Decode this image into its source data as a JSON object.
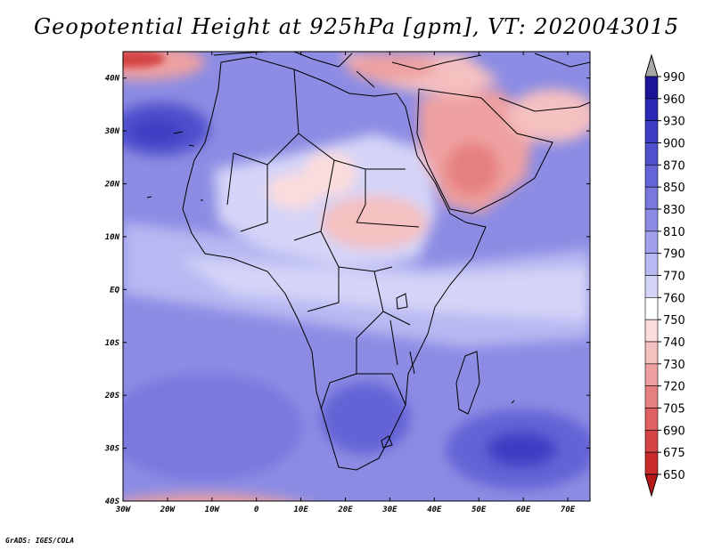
{
  "title": "Geopotential Height at 925hPa [gpm], VT: 2020043015",
  "credit": "GrADS: IGES/COLA",
  "map": {
    "lon_labels": [
      "30W",
      "20W",
      "10W",
      "0",
      "10E",
      "20E",
      "30E",
      "40E",
      "50E",
      "60E",
      "70E"
    ],
    "lat_labels": [
      "40N",
      "30N",
      "20N",
      "10N",
      "EQ",
      "10S",
      "20S",
      "30S",
      "40S"
    ]
  },
  "colorbar": {
    "levels": [
      "990",
      "960",
      "930",
      "900",
      "870",
      "850",
      "830",
      "810",
      "790",
      "770",
      "760",
      "750",
      "740",
      "730",
      "720",
      "705",
      "690",
      "675",
      "650"
    ],
    "colors": [
      "#1a1496",
      "#2a28b4",
      "#3c3cc4",
      "#5050cc",
      "#6464d6",
      "#7878de",
      "#8c8ce4",
      "#a0a0ec",
      "#b8b8f2",
      "#d4d4f8",
      "#ffffff",
      "#fbdcdc",
      "#f5c0c0",
      "#eea0a0",
      "#e68080",
      "#de6060",
      "#d44444",
      "#c82a2a",
      "#b81818"
    ]
  },
  "colors": {
    "background": "#ffffff",
    "frame": "#000000"
  }
}
